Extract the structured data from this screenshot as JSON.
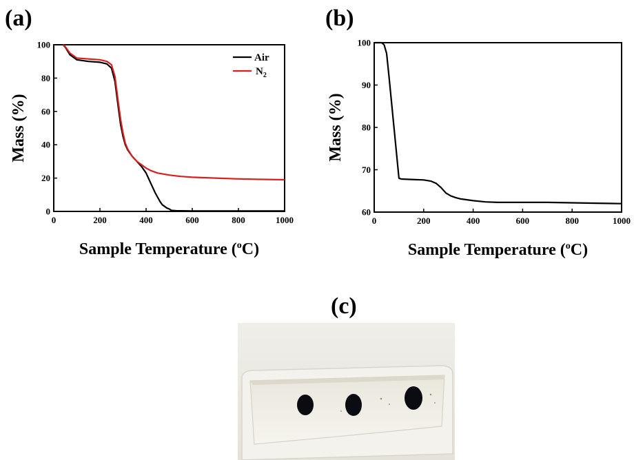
{
  "panels": {
    "a_label": "(a)",
    "b_label": "(b)",
    "c_label": "(c)"
  },
  "chart_data": [
    {
      "type": "line",
      "panel": "(a)",
      "xlabel": "Sample Temperature (oC)",
      "xlabel_main": "Sample Temperature (",
      "xlabel_sup": "o",
      "xlabel_end": "C)",
      "ylabel": "Mass (%)",
      "xlim": [
        0,
        1000
      ],
      "ylim": [
        0,
        100
      ],
      "xticks": [
        0,
        200,
        400,
        600,
        800,
        1000
      ],
      "yticks": [
        0,
        20,
        40,
        60,
        80,
        100
      ],
      "grid": false,
      "legend": "top-right",
      "series": [
        {
          "name": "Air",
          "color": "#000000",
          "x": [
            40,
            50,
            70,
            100,
            150,
            200,
            230,
            250,
            265,
            280,
            290,
            300,
            310,
            320,
            340,
            360,
            380,
            400,
            420,
            440,
            460,
            470,
            480,
            490,
            500,
            510,
            530,
            600,
            700,
            800,
            900,
            1000
          ],
          "y": [
            100,
            98.5,
            94,
            91,
            90,
            89.5,
            88.5,
            86,
            78,
            62,
            52,
            45,
            40,
            37,
            33,
            30,
            27,
            23,
            17,
            11,
            6,
            4,
            3,
            2,
            1.5,
            0.6,
            0.4,
            0.3,
            0.3,
            0.3,
            0.3,
            0.3
          ]
        },
        {
          "name": "N2",
          "label_main": "N",
          "label_sub": "2",
          "color": "#d71f1f",
          "x": [
            40,
            50,
            70,
            100,
            150,
            200,
            230,
            250,
            265,
            280,
            290,
            300,
            310,
            320,
            340,
            360,
            380,
            400,
            420,
            450,
            500,
            550,
            600,
            700,
            800,
            900,
            1000
          ],
          "y": [
            100,
            98.8,
            95,
            92,
            91.5,
            91,
            90,
            88,
            81,
            65,
            55,
            47,
            41,
            37.5,
            33,
            30,
            28,
            26,
            24.5,
            23,
            21.8,
            21,
            20.5,
            20,
            19.5,
            19.2,
            19
          ]
        }
      ]
    },
    {
      "type": "line",
      "panel": "(b)",
      "xlabel": "Sample Temperature (oC)",
      "xlabel_main": "Sample Temperature (",
      "xlabel_sup": "o",
      "xlabel_end": "C)",
      "ylabel": "Mass (%)",
      "xlim": [
        0,
        1000
      ],
      "ylim": [
        60,
        100
      ],
      "xticks": [
        0,
        200,
        400,
        600,
        800,
        1000
      ],
      "yticks": [
        60,
        70,
        80,
        90,
        100
      ],
      "grid": false,
      "series": [
        {
          "color": "#000000",
          "x": [
            0,
            30,
            40,
            50,
            60,
            70,
            80,
            90,
            100,
            110,
            150,
            200,
            230,
            250,
            270,
            290,
            310,
            330,
            350,
            400,
            450,
            500,
            600,
            700,
            800,
            900,
            1000
          ],
          "y": [
            100,
            100,
            99.5,
            97.5,
            92,
            86,
            80,
            74,
            68,
            67.8,
            67.7,
            67.6,
            67.3,
            66.8,
            65.8,
            64.5,
            63.8,
            63.4,
            63.1,
            62.7,
            62.4,
            62.3,
            62.3,
            62.3,
            62.2,
            62.1,
            62
          ]
        }
      ]
    }
  ],
  "photo": {
    "description_colors": {
      "background": "#ecebe3",
      "crucible": "#f2f0ea",
      "sample": "#0b0b12"
    },
    "sample_count": 3
  }
}
